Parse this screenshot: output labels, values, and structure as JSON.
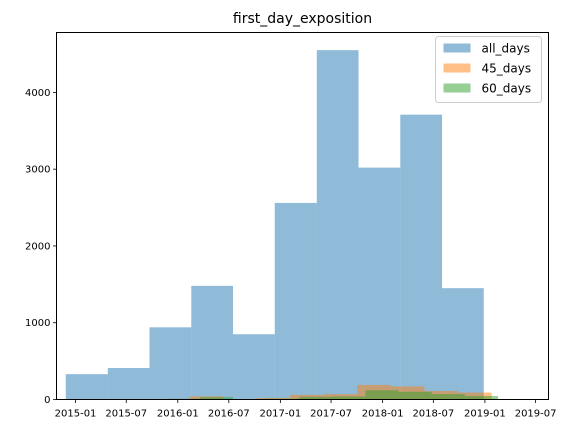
{
  "chart_data": {
    "type": "bar",
    "title": "first_day_exposition",
    "xlabel": "",
    "ylabel": "",
    "x_ticks": [
      "2015-01",
      "2015-07",
      "2016-01",
      "2016-07",
      "2017-01",
      "2017-07",
      "2018-01",
      "2018-07",
      "2019-01",
      "2019-07"
    ],
    "y_ticks": [
      0,
      1000,
      2000,
      3000,
      4000
    ],
    "xlim": [
      "2014-10-25",
      "2019-08-16"
    ],
    "ylim": [
      0,
      4780
    ],
    "legend_position": "top-right",
    "series": [
      {
        "name": "all_days",
        "color": "#1f77b4",
        "alpha": 0.5,
        "bins": [
          {
            "start": "2014-11-27",
            "end": "2015-04-26",
            "value": 330
          },
          {
            "start": "2015-04-26",
            "end": "2015-09-22",
            "value": 410
          },
          {
            "start": "2015-09-22",
            "end": "2016-02-18",
            "value": 940
          },
          {
            "start": "2016-02-18",
            "end": "2016-07-16",
            "value": 1480
          },
          {
            "start": "2016-07-16",
            "end": "2016-12-12",
            "value": 850
          },
          {
            "start": "2016-12-12",
            "end": "2017-05-11",
            "value": 2560
          },
          {
            "start": "2017-05-11",
            "end": "2017-10-07",
            "value": 4550
          },
          {
            "start": "2017-10-07",
            "end": "2018-03-05",
            "value": 3020
          },
          {
            "start": "2018-03-05",
            "end": "2018-08-01",
            "value": 3710
          },
          {
            "start": "2018-08-01",
            "end": "2018-12-28",
            "value": 1450
          }
        ]
      },
      {
        "name": "45_days",
        "color": "#ff7f0e",
        "alpha": 0.5,
        "bins": [
          {
            "start": "2015-10-15",
            "end": "2016-02-11",
            "value": 5
          },
          {
            "start": "2016-02-11",
            "end": "2016-06-10",
            "value": 40
          },
          {
            "start": "2016-06-10",
            "end": "2016-10-08",
            "value": 5
          },
          {
            "start": "2016-10-08",
            "end": "2017-02-05",
            "value": 20
          },
          {
            "start": "2017-02-05",
            "end": "2017-06-04",
            "value": 60
          },
          {
            "start": "2017-06-04",
            "end": "2017-10-02",
            "value": 70
          },
          {
            "start": "2017-10-02",
            "end": "2018-01-30",
            "value": 190
          },
          {
            "start": "2018-01-30",
            "end": "2018-05-30",
            "value": 170
          },
          {
            "start": "2018-05-30",
            "end": "2018-09-27",
            "value": 110
          },
          {
            "start": "2018-09-27",
            "end": "2019-01-25",
            "value": 90
          }
        ]
      },
      {
        "name": "60_days",
        "color": "#2ca02c",
        "alpha": 0.5,
        "bins": [
          {
            "start": "2015-11-23",
            "end": "2016-03-20",
            "value": 10
          },
          {
            "start": "2016-03-20",
            "end": "2016-07-16",
            "value": 30
          },
          {
            "start": "2016-07-16",
            "end": "2016-11-11",
            "value": 5
          },
          {
            "start": "2016-11-11",
            "end": "2017-03-10",
            "value": 10
          },
          {
            "start": "2017-03-10",
            "end": "2017-07-06",
            "value": 35
          },
          {
            "start": "2017-07-06",
            "end": "2017-11-01",
            "value": 40
          },
          {
            "start": "2017-11-01",
            "end": "2018-02-27",
            "value": 120
          },
          {
            "start": "2018-02-27",
            "end": "2018-06-25",
            "value": 100
          },
          {
            "start": "2018-06-25",
            "end": "2018-10-21",
            "value": 70
          },
          {
            "start": "2018-10-21",
            "end": "2019-02-17",
            "value": 45
          }
        ]
      }
    ]
  }
}
